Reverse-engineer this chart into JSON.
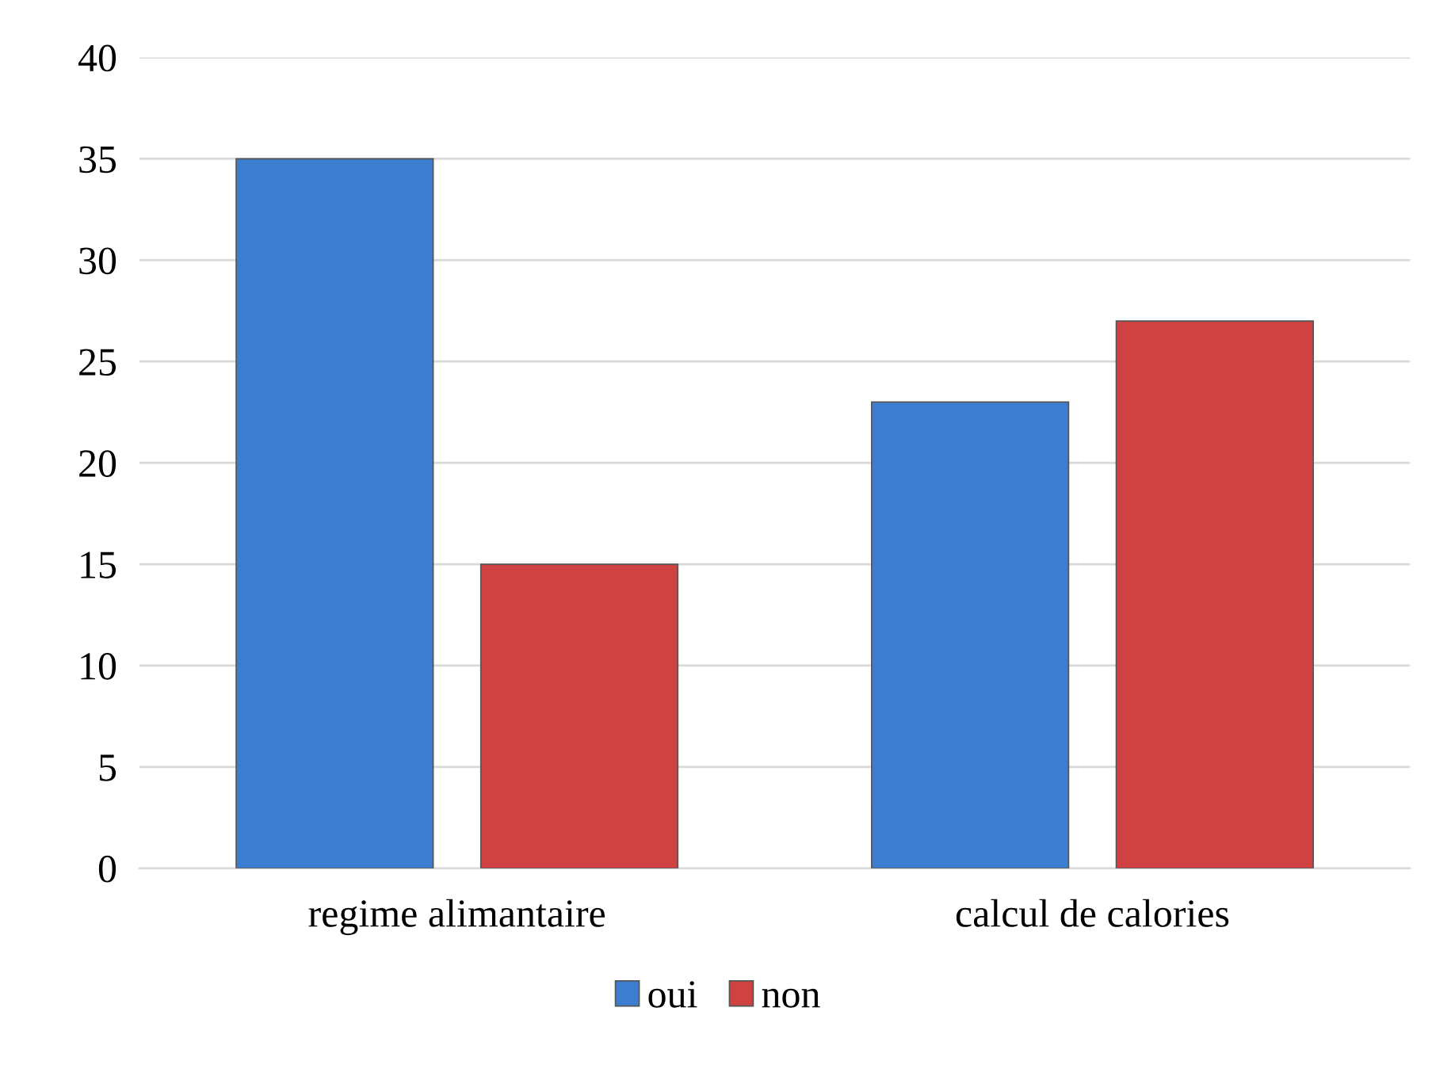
{
  "chart_data": {
    "type": "bar",
    "categories": [
      "regime alimantaire",
      "calcul de calories"
    ],
    "series": [
      {
        "name": "oui",
        "color": "#3d7dd0",
        "values": [
          35,
          23
        ]
      },
      {
        "name": "non",
        "color": "#d04242",
        "values": [
          15,
          27
        ]
      }
    ],
    "ylim": [
      0,
      40
    ],
    "yticks": [
      0,
      5,
      10,
      15,
      20,
      25,
      30,
      35,
      40
    ],
    "grid": "y",
    "legend": "bottom"
  }
}
